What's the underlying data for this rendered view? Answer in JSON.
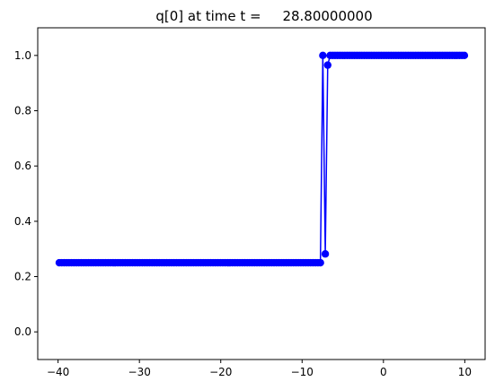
{
  "chart_data": {
    "type": "line",
    "title": "q[0] at time t =     28.80000000",
    "xlabel": "",
    "ylabel": "",
    "xlim": [
      -42.5,
      12.5
    ],
    "ylim": [
      -0.1,
      1.1
    ],
    "x_ticks": [
      -40,
      -30,
      -20,
      -10,
      0,
      10
    ],
    "x_tick_labels": [
      "−40",
      "−30",
      "−20",
      "−10",
      "0",
      "10"
    ],
    "y_ticks": [
      0.0,
      0.2,
      0.4,
      0.6,
      0.8,
      1.0
    ],
    "y_tick_labels": [
      "0.0",
      "0.2",
      "0.4",
      "0.6",
      "0.8",
      "1.0"
    ],
    "grid": false,
    "legend": false,
    "series": [
      {
        "color": "#0000ff",
        "marker": "circle",
        "x_start": -39.85,
        "x_step": 0.3,
        "count": 167,
        "values_rule": [
          {
            "x_max": -7.5,
            "y": 0.25
          },
          {
            "x": -7.15,
            "y": 0.282
          },
          {
            "x": -6.85,
            "y": 0.965
          },
          {
            "x_min": -6.55,
            "y": 1.0
          }
        ]
      }
    ]
  }
}
